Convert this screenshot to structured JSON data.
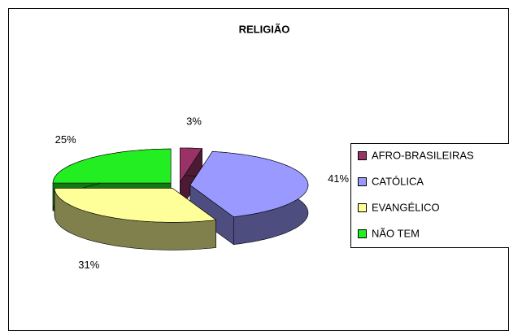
{
  "chart_data": {
    "type": "pie",
    "title": "RELIGIÃO",
    "categories": [
      "AFRO-BRASILEIRAS",
      "CATÓLICA",
      "EVANGÉLICO",
      "NÃO TEM"
    ],
    "values": [
      3,
      41,
      31,
      25
    ],
    "value_labels": [
      "3%",
      "41%",
      "31%",
      "25%"
    ],
    "colors": [
      "#993366",
      "#9999ff",
      "#ffff99",
      "#22ee22"
    ],
    "legend": "right"
  }
}
